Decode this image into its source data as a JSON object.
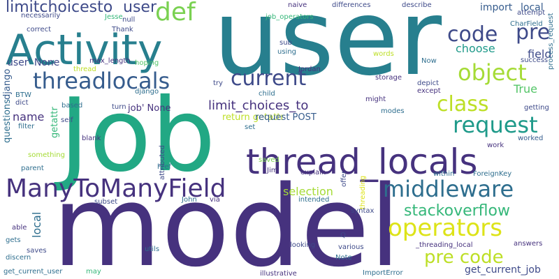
{
  "palette": {
    "dark_purple": "#46327e",
    "deep_indigo": "#3e4a89",
    "slate_blue": "#365c8d",
    "steel_blue": "#2e6e8e",
    "teal": "#277f8e",
    "sea_green": "#1f9a8a",
    "jade": "#22a884",
    "emerald": "#35b779",
    "green": "#54c568",
    "lime": "#7ad151",
    "chartreuse": "#a5db36",
    "yellow_green": "#bddf26",
    "yellow": "#dde318"
  },
  "words": [
    "user",
    "Job",
    "model",
    "Activity",
    "thread_locals",
    "ManyToManyField",
    "threadlocals",
    "def",
    "code",
    "pre",
    "object",
    "middleware",
    "operators",
    "request",
    "class",
    "current",
    "stackoverflow",
    "pre code",
    "limitchoicesto",
    "user",
    "limit_choices_to",
    "get_current_job",
    "import",
    "local",
    "choose",
    "field",
    "user' None",
    "True",
    "job' None",
    "name",
    "selection",
    "local",
    "return getattr",
    "request POST",
    "questions",
    "django",
    "getattr",
    "necessarily",
    "Jesse",
    "null",
    "job_operators",
    "naive",
    "differences",
    "describe",
    "CharField",
    "attempt",
    "correct",
    "Thank",
    "sub",
    "success",
    "using",
    "words",
    "Now",
    "max_length",
    "hoping",
    "thread",
    "Jordan",
    "storage",
    "try",
    "child",
    "depict",
    "except",
    "BTW",
    "dict",
    "based",
    "self",
    "filter",
    "django",
    "turn",
    "might",
    "modes",
    "getting",
    "process_request",
    "blank",
    "work",
    "worked",
    "something",
    "set",
    "explain",
    "href",
    "saved",
    "Jim",
    "ForeignKey",
    "within",
    "parent",
    "offer",
    "attributed",
    "threading",
    "syntax",
    "subset",
    "John",
    "via",
    "intended",
    "Q",
    "able",
    "gets",
    "saves",
    "discern",
    "utils",
    "looking",
    "various",
    "Note",
    "_threading_local",
    "answers",
    "get_current_user",
    "may",
    "illustrative",
    "ImportError"
  ]
}
